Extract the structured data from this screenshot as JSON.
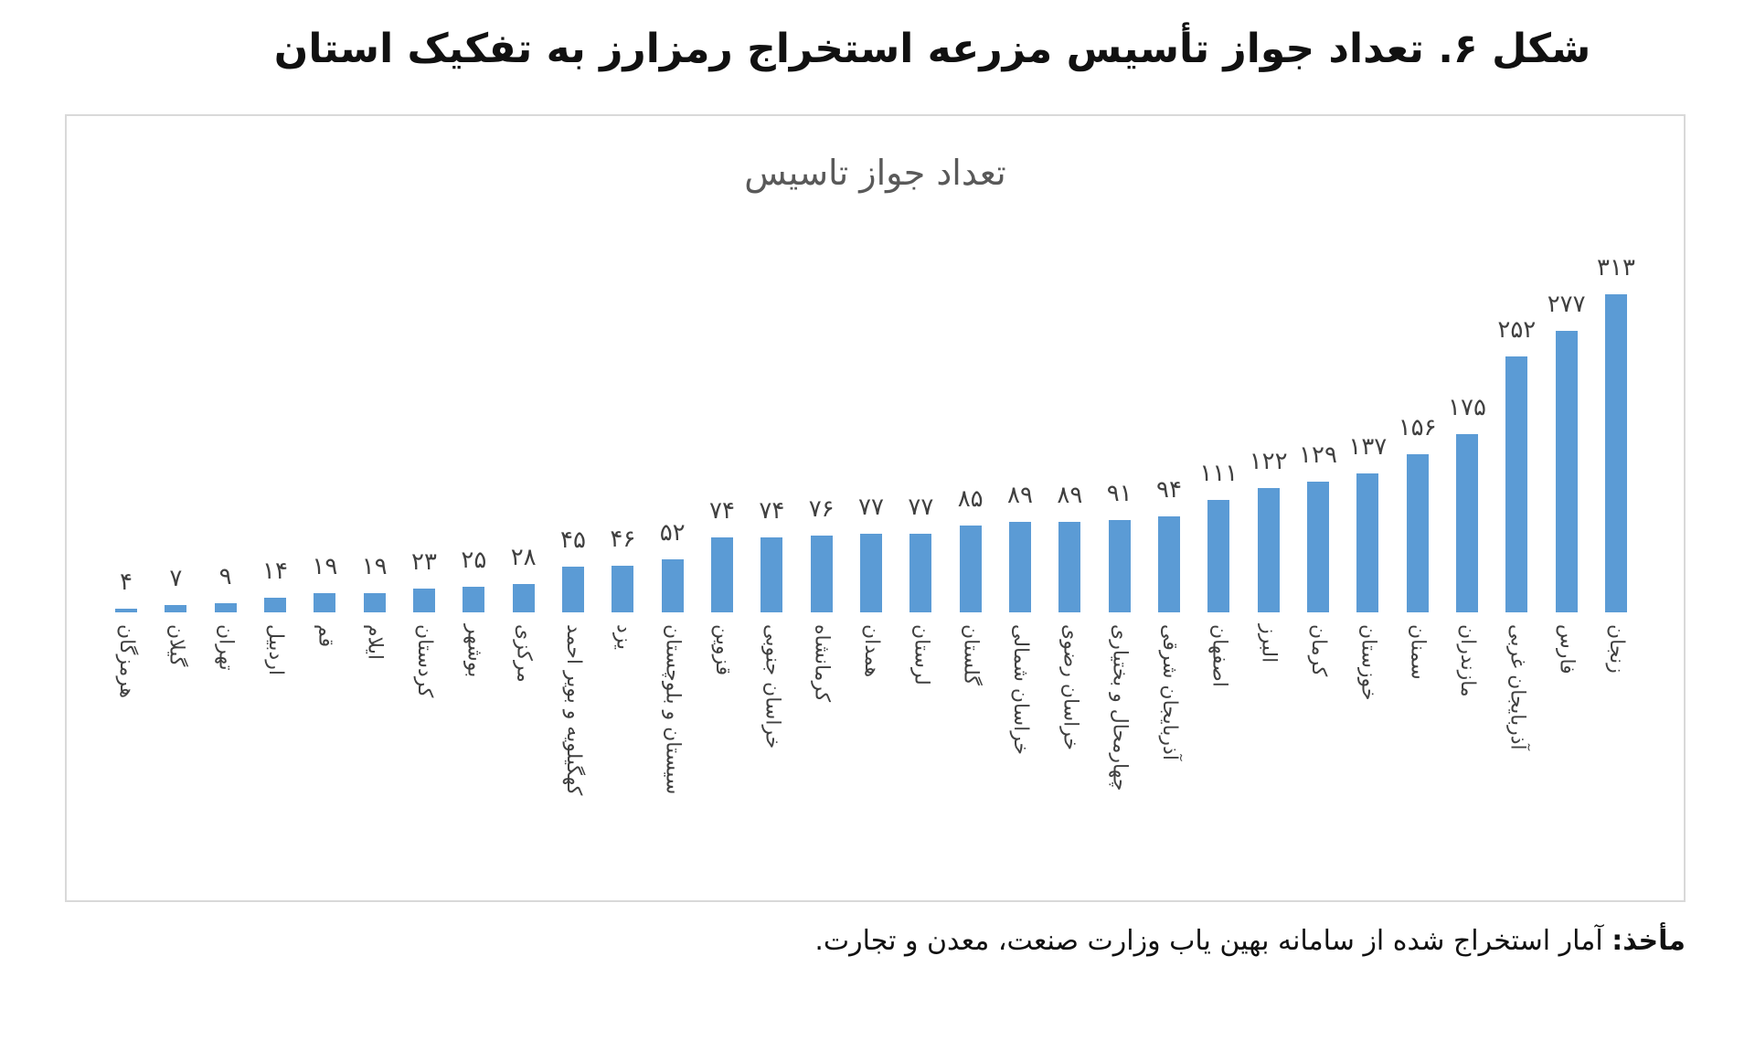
{
  "figure": {
    "title": "شکل ۶. تعداد جواز تأسیس مزرعه استخراج رمزارز به تفکیک استان",
    "source_label": "مأخذ:",
    "source_text": " آمار استخراج شده از سامانه بهین یاب وزارت صنعت، معدن و تجارت."
  },
  "colors": {
    "bar": "#5b9bd5",
    "border": "#d9d9d9",
    "chart_title": "#595959",
    "label": "#404040"
  },
  "chart_data": {
    "type": "bar",
    "title": "تعداد جواز تاسیس",
    "xlabel": "",
    "ylabel": "",
    "ylim": [
      0,
      313
    ],
    "grid": false,
    "legend": "none",
    "categories": [
      "هرمزگان",
      "گیلان",
      "تهران",
      "اردبیل",
      "قم",
      "ایلام",
      "کردستان",
      "بوشهر",
      "مرکزی",
      "کهگیلویه و بویر احمد",
      "یزد",
      "سیستان و بلوچستان",
      "قزوین",
      "خراسان جنوبی",
      "کرمانشاه",
      "همدان",
      "لرستان",
      "گلستان",
      "خراسان شمالی",
      "خراسان رضوی",
      "چهارمحال و بختیاری",
      "آذربایجان شرقی",
      "اصفهان",
      "البرز",
      "کرمان",
      "خوزستان",
      "سمنان",
      "مازندران",
      "آذربایجان غربی",
      "فارس",
      "زنجان"
    ],
    "values": [
      4,
      7,
      9,
      14,
      19,
      19,
      23,
      25,
      28,
      45,
      46,
      52,
      74,
      74,
      76,
      77,
      77,
      85,
      89,
      89,
      91,
      94,
      111,
      122,
      129,
      137,
      156,
      175,
      252,
      277,
      313
    ],
    "value_labels": [
      "۴",
      "۷",
      "۹",
      "۱۴",
      "۱۹",
      "۱۹",
      "۲۳",
      "۲۵",
      "۲۸",
      "۴۵",
      "۴۶",
      "۵۲",
      "۷۴",
      "۷۴",
      "۷۶",
      "۷۷",
      "۷۷",
      "۸۵",
      "۸۹",
      "۸۹",
      "۹۱",
      "۹۴",
      "۱۱۱",
      "۱۲۲",
      "۱۲۹",
      "۱۳۷",
      "۱۵۶",
      "۱۷۵",
      "۲۵۲",
      "۲۷۷",
      "۳۱۳"
    ]
  }
}
